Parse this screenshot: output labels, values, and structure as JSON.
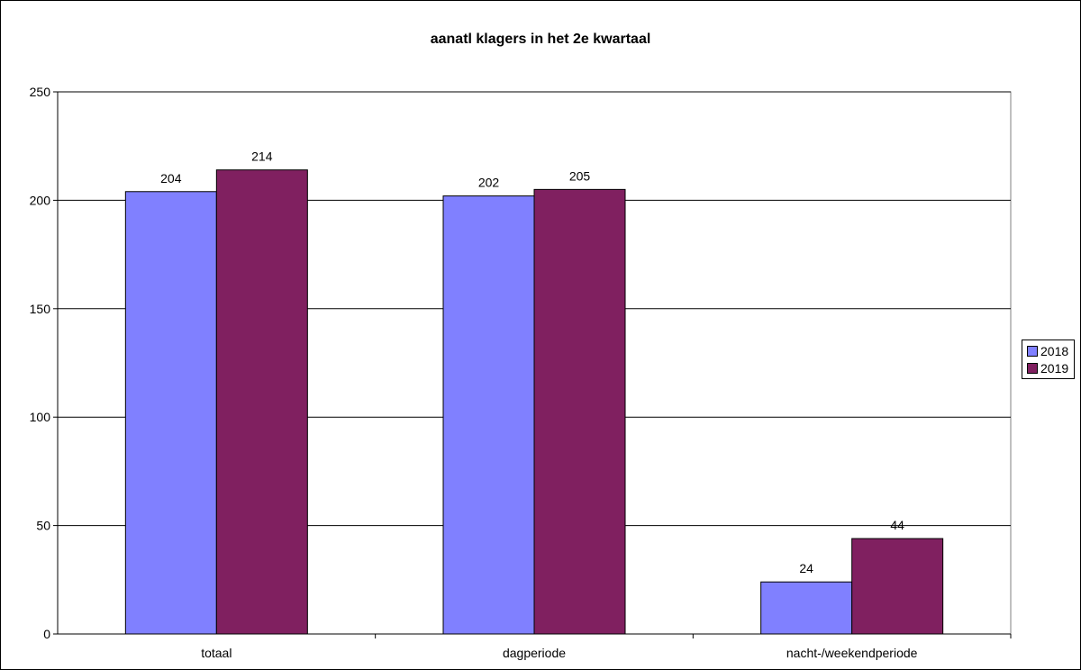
{
  "chart_data": {
    "type": "bar",
    "title": "aanatl klagers in het 2e kwartaal",
    "xlabel": "",
    "ylabel": "",
    "categories": [
      "totaal",
      "dagperiode",
      "nacht-/weekendperiode"
    ],
    "series": [
      {
        "name": "2018",
        "values": [
          204,
          202,
          24
        ],
        "color": "#8080FF"
      },
      {
        "name": "2019",
        "values": [
          214,
          205,
          44
        ],
        "color": "#802060"
      }
    ],
    "ylim": [
      0,
      250
    ],
    "yticks": [
      0,
      50,
      100,
      150,
      200,
      250
    ],
    "grid": true,
    "legend_position": "right",
    "data_labels": true
  }
}
